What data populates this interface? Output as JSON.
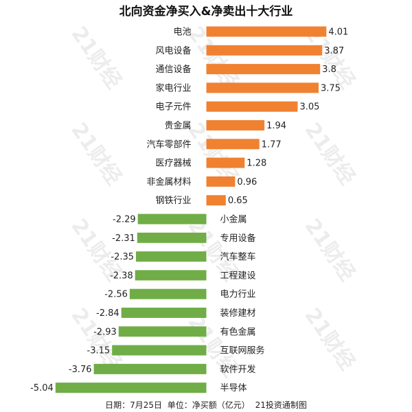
{
  "title": "北向资金净买入&净卖出十大行业",
  "footer": {
    "date": "日期：7月25日",
    "unit": "单位：净买额（亿元）",
    "source": "21投资通制图"
  },
  "watermark": "21财经",
  "colors": {
    "positive": "#F08131",
    "negative": "#70AD47"
  },
  "chart_data": {
    "type": "bar",
    "orientation": "horizontal",
    "title": "北向资金净买入&净卖出十大行业",
    "categories": [
      "电池",
      "风电设备",
      "通信设备",
      "家电行业",
      "电子元件",
      "贵金属",
      "汽车零部件",
      "医疗器械",
      "非金属材料",
      "钢铁行业",
      "小金属",
      "专用设备",
      "汽车整车",
      "工程建设",
      "电力行业",
      "装修建材",
      "有色金属",
      "互联网服务",
      "软件开发",
      "半导体"
    ],
    "values": [
      4.01,
      3.87,
      3.8,
      3.75,
      3.05,
      1.94,
      1.77,
      1.28,
      0.96,
      0.65,
      -2.29,
      -2.31,
      -2.35,
      -2.38,
      -2.56,
      -2.84,
      -2.93,
      -3.15,
      -3.76,
      -5.04
    ],
    "value_labels": [
      "4.01",
      "3.87",
      "3.8",
      "3.75",
      "3.05",
      "1.94",
      "1.77",
      "1.28",
      "0.96",
      "0.65",
      "-2.29",
      "-2.31",
      "-2.35",
      "-2.38",
      "-2.56",
      "-2.84",
      "-2.93",
      "-3.15",
      "-3.76",
      "-5.04"
    ],
    "xlim": [
      -5.04,
      4.01
    ],
    "grid": false,
    "legend": "none"
  }
}
